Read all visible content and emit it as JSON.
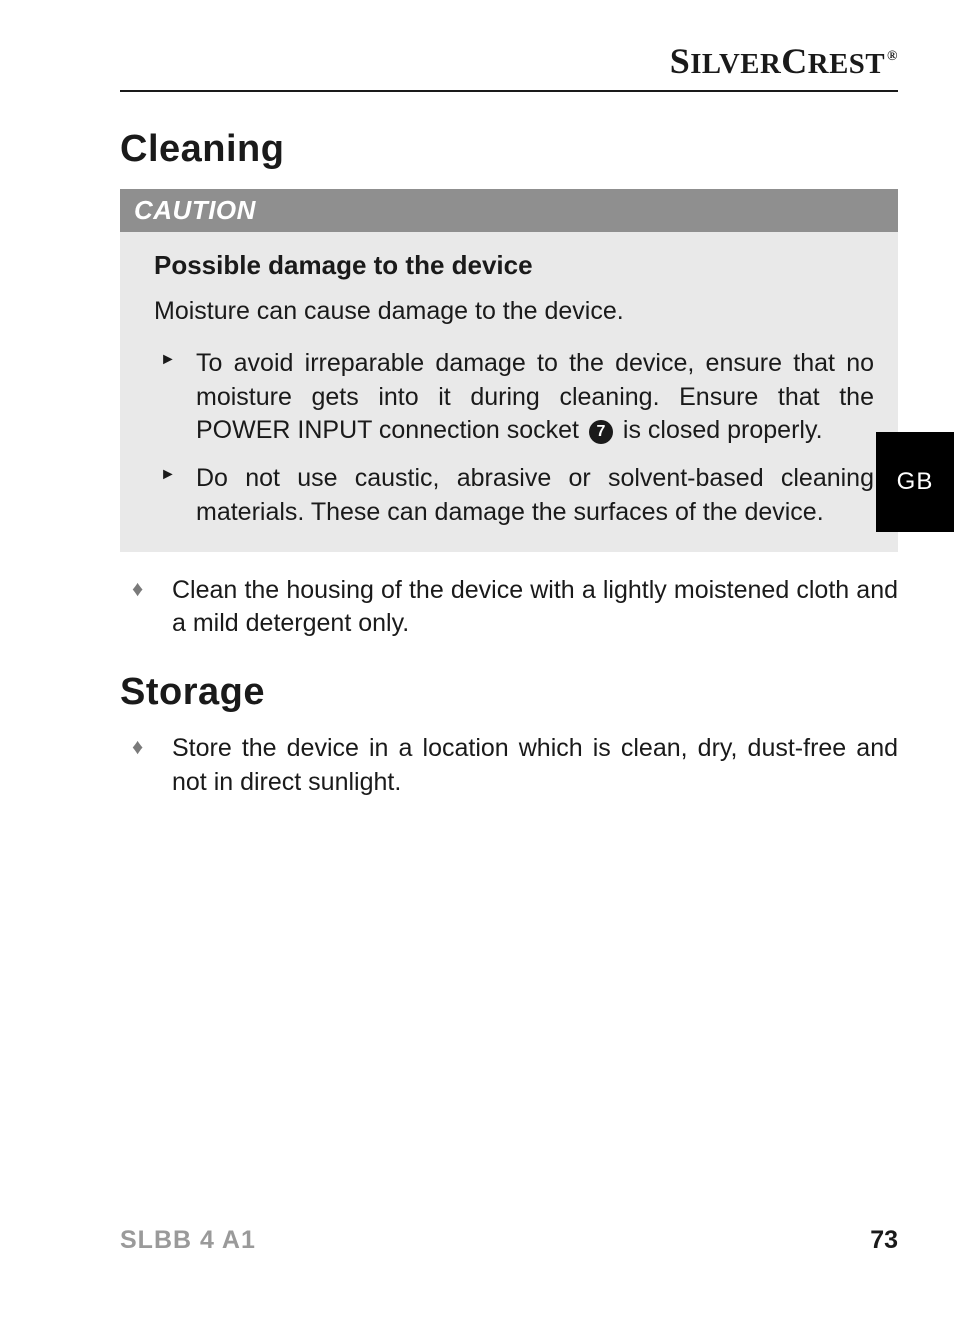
{
  "brand": {
    "name": "SilverCrest",
    "mark": "®"
  },
  "side_tab": "GB",
  "sections": {
    "cleaning": {
      "title": "Cleaning",
      "caution": {
        "label": "CAUTION",
        "subhead": "Possible damage to the device",
        "text": "Moisture can cause damage to the device.",
        "bullets": {
          "b1_pre": "To avoid irreparable damage to the device, ensure that no moisture gets into it during cleaning. Ensure that the POWER INPUT connection socket ",
          "b1_ref": "7",
          "b1_post": " is closed properly.",
          "b2": "Do not use caustic, abrasive or solvent-based cleaning materials. These can damage the surfaces of the device."
        }
      },
      "instructions": {
        "i1": "Clean the housing of the device with a lightly moistened cloth and a mild detergent only."
      }
    },
    "storage": {
      "title": "Storage",
      "instructions": {
        "i1": "Store the device in a location which is clean, dry, dust-free and not in direct sunlight."
      }
    }
  },
  "footer": {
    "model": "SLBB 4 A1",
    "page": "73"
  }
}
